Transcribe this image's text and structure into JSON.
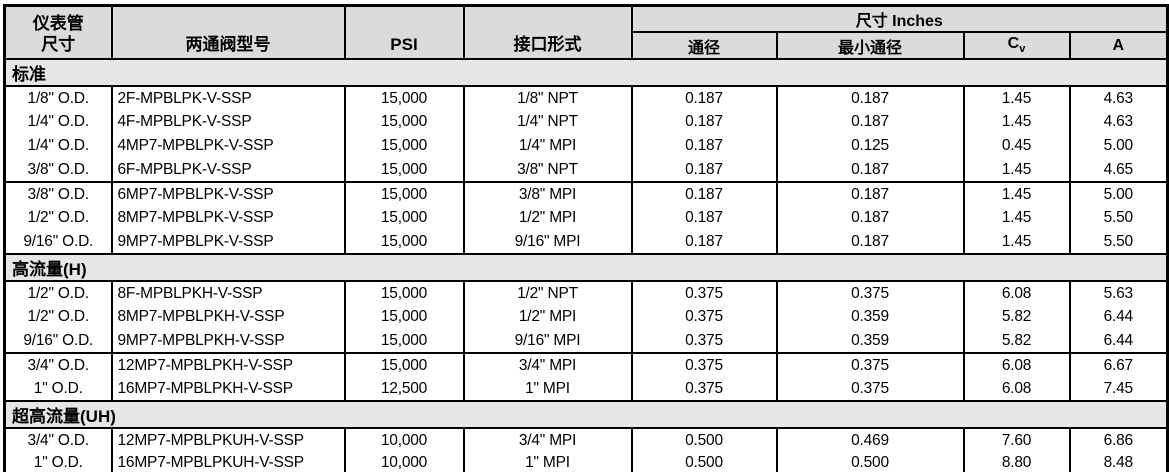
{
  "table": {
    "header": {
      "tube_size_line1": "仪表管",
      "tube_size_line2": "尺寸",
      "model": "两通阀型号",
      "psi": "PSI",
      "port": "接口形式",
      "inches_group": "尺寸 Inches",
      "bore": "通径",
      "min_bore": "最小通径",
      "cv_main": "C",
      "cv_sub": "v",
      "a": "A"
    },
    "sections": [
      {
        "label": "标准",
        "groups": [
          {
            "rows": [
              {
                "size": "1/8\" O.D.",
                "model": "2F-MPBLPK-V-SSP",
                "psi": "15,000",
                "port": "1/8\" NPT",
                "bore": "0.187",
                "min_bore": "0.187",
                "cv": "1.45",
                "a": "4.63"
              },
              {
                "size": "1/4\" O.D.",
                "model": "4F-MPBLPK-V-SSP",
                "psi": "15,000",
                "port": "1/4\" NPT",
                "bore": "0.187",
                "min_bore": "0.187",
                "cv": "1.45",
                "a": "4.63"
              },
              {
                "size": "1/4\" O.D.",
                "model": "4MP7-MPBLPK-V-SSP",
                "psi": "15,000",
                "port": "1/4\" MPI",
                "bore": "0.187",
                "min_bore": "0.125",
                "cv": "0.45",
                "a": "5.00"
              },
              {
                "size": "3/8\" O.D.",
                "model": "6F-MPBLPK-V-SSP",
                "psi": "15,000",
                "port": "3/8\" NPT",
                "bore": "0.187",
                "min_bore": "0.187",
                "cv": "1.45",
                "a": "4.65"
              }
            ]
          },
          {
            "rows": [
              {
                "size": "3/8\" O.D.",
                "model": "6MP7-MPBLPK-V-SSP",
                "psi": "15,000",
                "port": "3/8\" MPI",
                "bore": "0.187",
                "min_bore": "0.187",
                "cv": "1.45",
                "a": "5.00"
              },
              {
                "size": "1/2\" O.D.",
                "model": "8MP7-MPBLPK-V-SSP",
                "psi": "15,000",
                "port": "1/2\" MPI",
                "bore": "0.187",
                "min_bore": "0.187",
                "cv": "1.45",
                "a": "5.50"
              },
              {
                "size": "9/16\" O.D.",
                "model": "9MP7-MPBLPK-V-SSP",
                "psi": "15,000",
                "port": "9/16\" MPI",
                "bore": "0.187",
                "min_bore": "0.187",
                "cv": "1.45",
                "a": "5.50"
              }
            ]
          }
        ]
      },
      {
        "label": "高流量(H)",
        "groups": [
          {
            "rows": [
              {
                "size": "1/2\" O.D.",
                "model": "8F-MPBLPKH-V-SSP",
                "psi": "15,000",
                "port": "1/2\" NPT",
                "bore": "0.375",
                "min_bore": "0.375",
                "cv": "6.08",
                "a": "5.63"
              },
              {
                "size": "1/2\" O.D.",
                "model": "8MP7-MPBLPKH-V-SSP",
                "psi": "15,000",
                "port": "1/2\" MPI",
                "bore": "0.375",
                "min_bore": "0.359",
                "cv": "5.82",
                "a": "6.44"
              },
              {
                "size": "9/16\" O.D.",
                "model": "9MP7-MPBLPKH-V-SSP",
                "psi": "15,000",
                "port": "9/16\" MPI",
                "bore": "0.375",
                "min_bore": "0.359",
                "cv": "5.82",
                "a": "6.44"
              }
            ]
          },
          {
            "rows": [
              {
                "size": "3/4\" O.D.",
                "model": "12MP7-MPBLPKH-V-SSP",
                "psi": "15,000",
                "port": "3/4\" MPI",
                "bore": "0.375",
                "min_bore": "0.375",
                "cv": "6.08",
                "a": "6.67"
              },
              {
                "size": "1\" O.D.",
                "model": "16MP7-MPBLPKH-V-SSP",
                "psi": "12,500",
                "port": "1\" MPI",
                "bore": "0.375",
                "min_bore": "0.375",
                "cv": "6.08",
                "a": "7.45"
              }
            ]
          }
        ]
      },
      {
        "label": "超高流量(UH)",
        "groups": [
          {
            "rows": [
              {
                "size": "3/4\" O.D.",
                "model": "12MP7-MPBLPKUH-V-SSP",
                "psi": "10,000",
                "port": "3/4\" MPI",
                "bore": "0.500",
                "min_bore": "0.469",
                "cv": "7.60",
                "a": "6.86"
              },
              {
                "size": "1\" O.D.",
                "model": "16MP7-MPBLPKUH-V-SSP",
                "psi": "10,000",
                "port": "1\" MPI",
                "bore": "0.500",
                "min_bore": "0.500",
                "cv": "8.80",
                "a": "8.48"
              }
            ]
          }
        ]
      }
    ]
  }
}
